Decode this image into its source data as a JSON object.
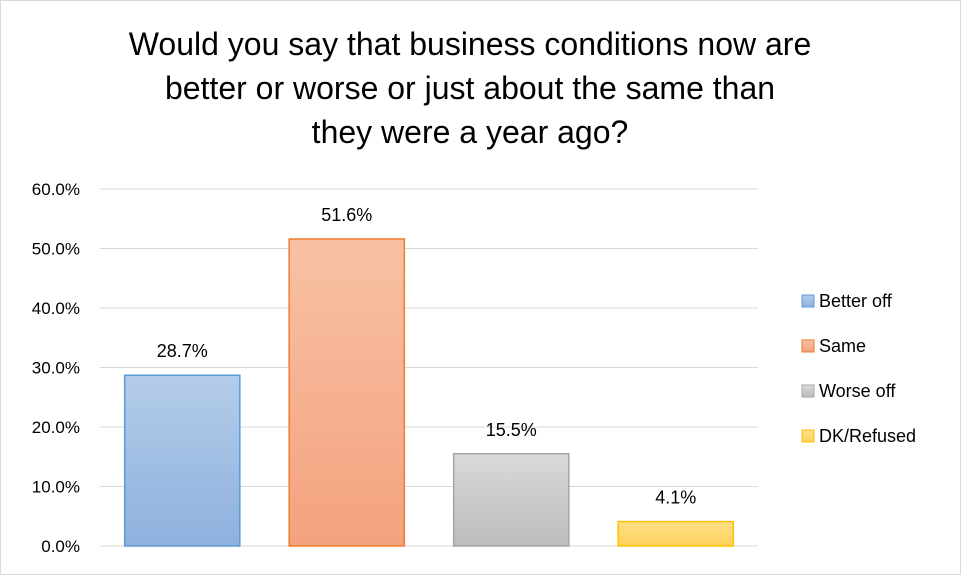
{
  "chart_data": {
    "type": "bar",
    "title_lines": [
      "Would you say that business conditions now are",
      "better or worse or just about the same than",
      "they were a year ago?"
    ],
    "categories": [
      "Better off",
      "Same",
      "Worse off",
      "DK/Refused"
    ],
    "values": [
      28.7,
      51.6,
      15.5,
      4.1
    ],
    "value_labels": [
      "28.7%",
      "51.6%",
      "15.5%",
      "4.1%"
    ],
    "colors": {
      "Better off": {
        "fill_top": "#b4cce9",
        "fill_bottom": "#8eb1de",
        "stroke": "#5b9bd5"
      },
      "Same": {
        "fill_top": "#f8c1a4",
        "fill_bottom": "#f4a27e",
        "stroke": "#ed7d31"
      },
      "Worse off": {
        "fill_top": "#d9d9d9",
        "fill_bottom": "#bcbcbc",
        "stroke": "#a5a5a5"
      },
      "DK/Refused": {
        "fill_top": "#ffe08a",
        "fill_bottom": "#ffd25a",
        "stroke": "#ffc000"
      }
    },
    "yticks": [
      "0.0%",
      "10.0%",
      "20.0%",
      "30.0%",
      "40.0%",
      "50.0%",
      "60.0%"
    ],
    "ylim": [
      0,
      60
    ],
    "grid": true,
    "legend": "right",
    "xlabel": "",
    "ylabel": ""
  }
}
